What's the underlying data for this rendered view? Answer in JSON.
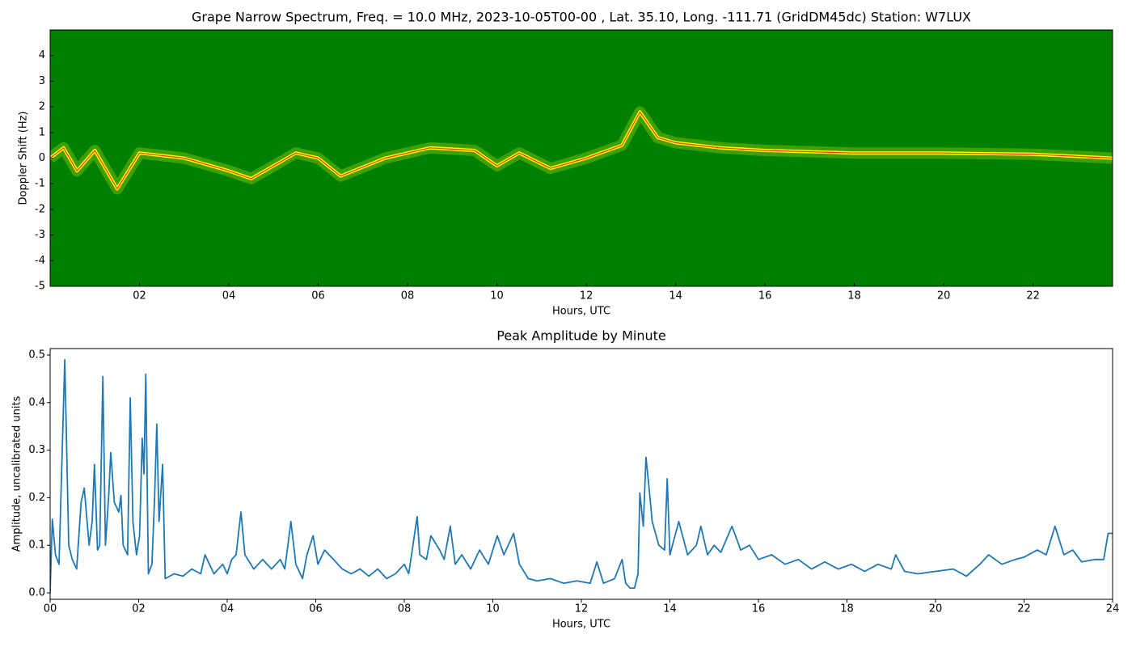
{
  "chart_data": [
    {
      "type": "spectrogram",
      "title": "Grape Narrow Spectrum, Freq. = 10.0 MHz, 2023-10-05T00-00 , Lat.  35.10, Long. -111.71 (GridDM45dc) Station: W7LUX",
      "x_label": "Hours, UTC",
      "y_label": "Doppler Shift (Hz)",
      "background_color": "#008000",
      "trace": {
        "color": "#ffff00",
        "core_color": "#ff3300",
        "x": [
          0,
          0.3,
          0.6,
          1.0,
          1.5,
          2.0,
          3.0,
          4.0,
          4.5,
          5.5,
          6.0,
          6.5,
          7.5,
          8.5,
          9.5,
          10.0,
          10.5,
          11.2,
          12.0,
          12.8,
          13.2,
          13.6,
          14.0,
          15.0,
          16.0,
          18.0,
          20.0,
          22.0,
          23.78
        ],
        "values": [
          0,
          0.4,
          -0.5,
          0.3,
          -1.2,
          0.2,
          0,
          -0.5,
          -0.8,
          0.2,
          0,
          -0.7,
          0,
          0.4,
          0.3,
          -0.3,
          0.2,
          -0.4,
          0,
          0.5,
          1.8,
          0.8,
          0.6,
          0.4,
          0.3,
          0.2,
          0.2,
          0.15,
          0
        ]
      },
      "xlim": [
        0,
        23.78
      ],
      "xticks": [
        {
          "value": 2,
          "label": "02"
        },
        {
          "value": 4,
          "label": "04"
        },
        {
          "value": 6,
          "label": "06"
        },
        {
          "value": 8,
          "label": "08"
        },
        {
          "value": 10,
          "label": "10"
        },
        {
          "value": 12,
          "label": "12"
        },
        {
          "value": 14,
          "label": "14"
        },
        {
          "value": 16,
          "label": "16"
        },
        {
          "value": 18,
          "label": "18"
        },
        {
          "value": 20,
          "label": "20"
        },
        {
          "value": 22,
          "label": "22"
        }
      ],
      "ylim": [
        -5,
        5
      ],
      "yticks": [
        -5,
        -4,
        -3,
        -2,
        -1,
        0,
        1,
        2,
        3,
        4
      ]
    },
    {
      "type": "line",
      "title": "Peak Amplitude by Minute",
      "x_label": "Hours, UTC",
      "y_label": "Amplitude, uncalibrated units",
      "color": "#1f77b4",
      "x": [
        0,
        0.05,
        0.12,
        0.2,
        0.33,
        0.42,
        0.5,
        0.6,
        0.7,
        0.77,
        0.88,
        0.95,
        1.0,
        1.07,
        1.12,
        1.19,
        1.25,
        1.32,
        1.37,
        1.45,
        1.55,
        1.6,
        1.65,
        1.75,
        1.81,
        1.87,
        1.95,
        2.02,
        2.08,
        2.12,
        2.16,
        2.22,
        2.3,
        2.36,
        2.41,
        2.46,
        2.54,
        2.6,
        2.8,
        3.0,
        3.2,
        3.4,
        3.5,
        3.7,
        3.9,
        4.0,
        4.1,
        4.2,
        4.31,
        4.4,
        4.6,
        4.8,
        5.0,
        5.2,
        5.3,
        5.44,
        5.55,
        5.7,
        5.8,
        5.94,
        6.05,
        6.2,
        6.4,
        6.6,
        6.8,
        7.0,
        7.2,
        7.4,
        7.6,
        7.8,
        8.0,
        8.1,
        8.29,
        8.35,
        8.5,
        8.6,
        8.8,
        8.9,
        9.04,
        9.15,
        9.3,
        9.5,
        9.7,
        9.9,
        10.1,
        10.25,
        10.47,
        10.6,
        10.8,
        11.0,
        11.3,
        11.6,
        11.9,
        12.2,
        12.35,
        12.5,
        12.75,
        12.92,
        13.0,
        13.1,
        13.2,
        13.28,
        13.32,
        13.4,
        13.46,
        13.52,
        13.6,
        13.75,
        13.88,
        13.94,
        14.0,
        14.2,
        14.4,
        14.6,
        14.7,
        14.85,
        15.0,
        15.15,
        15.4,
        15.6,
        15.8,
        16.0,
        16.3,
        16.6,
        16.9,
        17.2,
        17.5,
        17.8,
        18.1,
        18.4,
        18.7,
        19.0,
        19.1,
        19.3,
        19.6,
        20.0,
        20.4,
        20.7,
        21.0,
        21.2,
        21.5,
        21.8,
        22.0,
        22.3,
        22.5,
        22.7,
        22.9,
        23.1,
        23.3,
        23.6,
        23.8,
        23.9,
        24.0
      ],
      "values": [
        0.0,
        0.155,
        0.08,
        0.06,
        0.49,
        0.1,
        0.07,
        0.05,
        0.19,
        0.22,
        0.1,
        0.15,
        0.27,
        0.09,
        0.1,
        0.455,
        0.1,
        0.2,
        0.295,
        0.19,
        0.17,
        0.205,
        0.1,
        0.08,
        0.41,
        0.15,
        0.08,
        0.12,
        0.325,
        0.25,
        0.46,
        0.04,
        0.06,
        0.2,
        0.355,
        0.15,
        0.27,
        0.03,
        0.04,
        0.035,
        0.05,
        0.04,
        0.08,
        0.04,
        0.06,
        0.04,
        0.07,
        0.08,
        0.17,
        0.08,
        0.05,
        0.07,
        0.05,
        0.07,
        0.05,
        0.15,
        0.06,
        0.03,
        0.08,
        0.12,
        0.06,
        0.09,
        0.07,
        0.05,
        0.04,
        0.05,
        0.035,
        0.05,
        0.03,
        0.04,
        0.06,
        0.04,
        0.16,
        0.08,
        0.07,
        0.12,
        0.09,
        0.07,
        0.14,
        0.06,
        0.08,
        0.05,
        0.09,
        0.06,
        0.12,
        0.08,
        0.125,
        0.06,
        0.03,
        0.025,
        0.03,
        0.02,
        0.025,
        0.02,
        0.065,
        0.02,
        0.03,
        0.07,
        0.02,
        0.01,
        0.01,
        0.04,
        0.21,
        0.14,
        0.285,
        0.23,
        0.15,
        0.1,
        0.09,
        0.24,
        0.08,
        0.15,
        0.08,
        0.1,
        0.14,
        0.08,
        0.1,
        0.085,
        0.14,
        0.09,
        0.1,
        0.07,
        0.08,
        0.06,
        0.07,
        0.05,
        0.065,
        0.05,
        0.06,
        0.045,
        0.06,
        0.05,
        0.08,
        0.045,
        0.04,
        0.045,
        0.05,
        0.035,
        0.06,
        0.08,
        0.06,
        0.07,
        0.075,
        0.09,
        0.08,
        0.14,
        0.08,
        0.09,
        0.065,
        0.07,
        0.07,
        0.125,
        0.125
      ],
      "xlim": [
        0,
        24
      ],
      "xticks": [
        {
          "value": 0,
          "label": "00"
        },
        {
          "value": 2,
          "label": "02"
        },
        {
          "value": 4,
          "label": "04"
        },
        {
          "value": 6,
          "label": "06"
        },
        {
          "value": 8,
          "label": "08"
        },
        {
          "value": 10,
          "label": "10"
        },
        {
          "value": 12,
          "label": "12"
        },
        {
          "value": 14,
          "label": "14"
        },
        {
          "value": 16,
          "label": "16"
        },
        {
          "value": 18,
          "label": "18"
        },
        {
          "value": 20,
          "label": "20"
        },
        {
          "value": 22,
          "label": "22"
        },
        {
          "value": 24,
          "label": "24"
        }
      ],
      "ylim": [
        -0.0136,
        0.5136
      ],
      "yticks": [
        {
          "value": 0,
          "label": "0.0"
        },
        0.1,
        0.2,
        0.3,
        0.4,
        0.5
      ]
    }
  ]
}
